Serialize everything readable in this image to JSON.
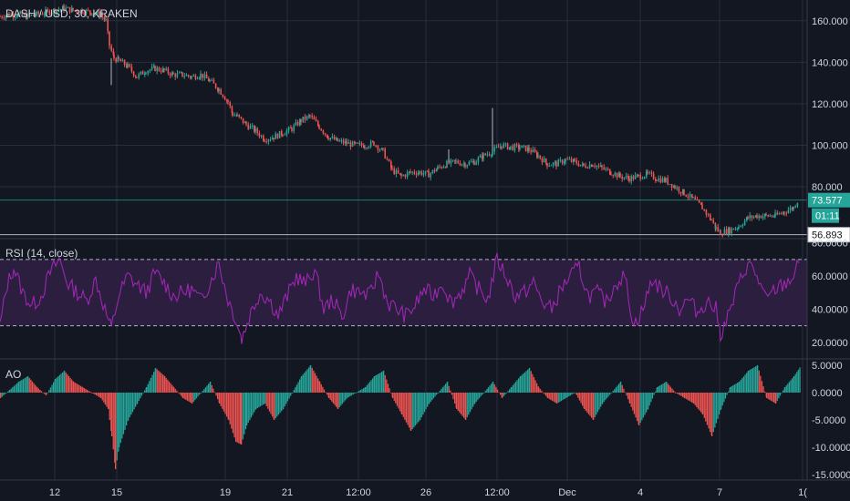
{
  "header": {
    "symbol": "DASH / USD, 30, KRAKEN",
    "rsi_title": "RSI (14, close)",
    "ao_title": "AO"
  },
  "colors": {
    "background": "#131722",
    "grid": "#2a2e39",
    "candle_up": "#26a69a",
    "candle_down": "#ef5350",
    "rsi_line": "#9c27b0",
    "rsi_band": "#2b1e3f",
    "ao_up": "#26a69a",
    "ao_down": "#ef5350",
    "hline": "#26a69a",
    "text": "#d1d4dc"
  },
  "price_scale": {
    "ticks": [
      "160.000",
      "140.000",
      "120.000",
      "100.000",
      "80.000"
    ],
    "last_price": "73.577",
    "countdown": "01:11",
    "horizontal_level": "56.893"
  },
  "rsi_scale": {
    "ticks": [
      "80.0000",
      "60.0000",
      "40.0000",
      "20.0000"
    ]
  },
  "ao_scale": {
    "ticks": [
      "5.0000",
      "0.0000",
      "-5.0000",
      "-10.0000",
      "-15.0000"
    ]
  },
  "time_axis": {
    "labels": [
      "12",
      "15",
      "19",
      "21",
      "12:00",
      "26",
      "12:00",
      "Dec",
      "4",
      "7",
      "1("
    ]
  },
  "chart_data": [
    {
      "type": "candlestick",
      "title": "DASH / USD, 30, KRAKEN",
      "ylim": [
        55,
        170
      ],
      "x": [
        0,
        10,
        20,
        30,
        40,
        50,
        60,
        70,
        80,
        90,
        100,
        110,
        116,
        120,
        125,
        130,
        140,
        150,
        160,
        170,
        180,
        190,
        200,
        210,
        220,
        230,
        240,
        250,
        255,
        260,
        270,
        280,
        290,
        300,
        310,
        320,
        330,
        340,
        350,
        360,
        370,
        380,
        390,
        400,
        410,
        420,
        430,
        440,
        450,
        460,
        470,
        480,
        490,
        500,
        510,
        520,
        530,
        540,
        550,
        560,
        570,
        580,
        590,
        600,
        610,
        620,
        630,
        640,
        650,
        660,
        670,
        680,
        690,
        700,
        710,
        720,
        730,
        740,
        750,
        760,
        770,
        780,
        785,
        790,
        800,
        810,
        820,
        830,
        840,
        850,
        860,
        870,
        875
      ],
      "close": [
        162,
        163,
        163,
        162,
        163,
        164,
        165,
        166,
        165,
        165,
        164,
        163,
        160,
        148,
        142,
        141,
        138,
        133,
        136,
        137,
        136,
        134,
        134,
        133,
        134,
        131,
        127,
        121,
        115,
        114,
        110,
        107,
        103,
        104,
        106,
        108,
        112,
        114,
        109,
        104,
        102,
        101,
        100,
        100,
        101,
        97,
        88,
        85,
        87,
        87,
        86,
        89,
        91,
        92,
        91,
        92,
        95,
        97,
        100,
        99,
        99,
        98,
        95,
        91,
        91,
        93,
        92,
        90,
        91,
        89,
        87,
        85,
        84,
        85,
        86,
        84,
        83,
        80,
        77,
        74,
        70,
        64,
        60,
        58,
        59,
        61,
        65,
        66,
        66,
        66,
        68,
        70,
        73.577
      ],
      "spikes": [
        {
          "x": 540,
          "high": 118
        },
        {
          "x": 492,
          "high": 98
        },
        {
          "x": 122,
          "low": 129
        }
      ]
    },
    {
      "type": "line",
      "title": "RSI (14, close)",
      "ylim": [
        10,
        82
      ],
      "bands": [
        30,
        70
      ],
      "x": [
        0,
        8,
        15,
        25,
        35,
        45,
        55,
        65,
        75,
        85,
        95,
        105,
        115,
        122,
        130,
        140,
        150,
        160,
        170,
        180,
        190,
        200,
        210,
        220,
        230,
        240,
        250,
        258,
        265,
        275,
        285,
        295,
        305,
        315,
        325,
        335,
        345,
        355,
        365,
        375,
        385,
        395,
        405,
        415,
        425,
        435,
        445,
        455,
        465,
        475,
        485,
        495,
        505,
        515,
        525,
        535,
        545,
        555,
        565,
        575,
        585,
        595,
        605,
        615,
        625,
        635,
        645,
        655,
        665,
        675,
        685,
        695,
        705,
        715,
        725,
        735,
        745,
        755,
        765,
        775,
        785,
        790,
        800,
        810,
        820,
        830,
        840,
        850,
        860,
        870,
        878
      ],
      "values": [
        30,
        55,
        65,
        50,
        42,
        48,
        62,
        70,
        55,
        50,
        45,
        58,
        40,
        28,
        48,
        60,
        55,
        50,
        62,
        56,
        48,
        50,
        52,
        45,
        56,
        68,
        46,
        35,
        22,
        38,
        50,
        46,
        36,
        48,
        60,
        55,
        64,
        40,
        46,
        35,
        52,
        50,
        48,
        62,
        44,
        40,
        36,
        42,
        52,
        48,
        56,
        44,
        50,
        60,
        52,
        46,
        70,
        60,
        48,
        50,
        56,
        44,
        40,
        52,
        60,
        65,
        48,
        50,
        44,
        56,
        60,
        30,
        40,
        58,
        52,
        48,
        40,
        46,
        38,
        45,
        40,
        25,
        38,
        55,
        68,
        60,
        45,
        52,
        55,
        60,
        70
      ]
    },
    {
      "type": "bar",
      "title": "AO",
      "ylim": [
        -16,
        6
      ],
      "x": [
        0,
        10,
        20,
        30,
        40,
        50,
        60,
        70,
        80,
        90,
        100,
        110,
        118,
        122,
        126,
        130,
        140,
        150,
        160,
        170,
        180,
        190,
        200,
        210,
        220,
        230,
        240,
        250,
        258,
        264,
        270,
        280,
        290,
        300,
        310,
        320,
        330,
        340,
        350,
        360,
        370,
        380,
        390,
        400,
        410,
        420,
        430,
        440,
        450,
        460,
        470,
        480,
        490,
        500,
        510,
        520,
        530,
        540,
        550,
        560,
        570,
        580,
        590,
        600,
        610,
        620,
        630,
        640,
        650,
        660,
        670,
        680,
        690,
        700,
        710,
        720,
        730,
        740,
        750,
        760,
        770,
        780,
        790,
        800,
        810,
        820,
        830,
        840,
        850,
        860,
        870,
        878
      ],
      "values": [
        -1,
        0.5,
        2,
        3,
        1,
        -0.5,
        2.5,
        4,
        2,
        1,
        0,
        -1,
        -3,
        -8,
        -14,
        -10,
        -5,
        -2,
        1,
        4.5,
        3,
        1,
        -1,
        -2,
        0,
        2,
        -2,
        -5,
        -9,
        -9.5,
        -6,
        -3,
        -2,
        -5,
        -3,
        0,
        3,
        5,
        2,
        -1,
        -3,
        -1,
        0,
        1,
        3,
        4,
        -1,
        -4,
        -7,
        -5,
        -2,
        0,
        2,
        -3,
        -5,
        -2,
        0,
        2,
        -1,
        1,
        3,
        4.5,
        1,
        -1,
        -2,
        -1,
        0,
        -3,
        -5,
        -2,
        0,
        2,
        -2,
        -6,
        -3,
        1,
        2,
        0,
        -1,
        -2,
        -4,
        -8,
        -3,
        1,
        2,
        4,
        5,
        -1,
        -2,
        1,
        3,
        5
      ]
    }
  ]
}
